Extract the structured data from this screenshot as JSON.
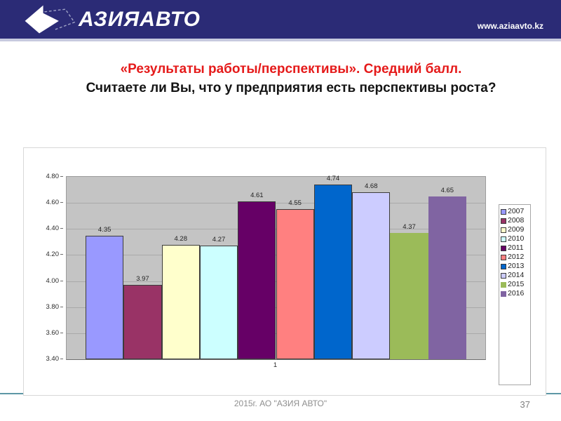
{
  "header": {
    "logo_text": "АЗИЯАВТО",
    "website": "www.aziaavto.kz",
    "bg_color": "#2B2B76"
  },
  "title": {
    "line1": "«Результаты работы/перспективы». Средний балл.",
    "line2": "Считаете ли Вы, что у предприятия есть перспективы роста?",
    "line1_color": "#E51A1A"
  },
  "chart_data": {
    "type": "bar",
    "title": "",
    "categories": [
      "1"
    ],
    "series": [
      {
        "name": "2007",
        "value": 4.35,
        "label": "4.35",
        "color": "#9999FF",
        "border": true
      },
      {
        "name": "2008",
        "value": 3.97,
        "label": "3.97",
        "color": "#993366",
        "border": true
      },
      {
        "name": "2009",
        "value": 4.28,
        "label": "4.28",
        "color": "#FFFFCC",
        "border": true
      },
      {
        "name": "2010",
        "value": 4.27,
        "label": "4.27",
        "color": "#CCFFFF",
        "border": true
      },
      {
        "name": "2011",
        "value": 4.61,
        "label": "4.61",
        "color": "#660066",
        "border": true
      },
      {
        "name": "2012",
        "value": 4.55,
        "label": "4.55",
        "color": "#FF8080",
        "border": true
      },
      {
        "name": "2013",
        "value": 4.74,
        "label": "4.74",
        "color": "#0066CC",
        "border": true
      },
      {
        "name": "2014",
        "value": 4.68,
        "label": "4.68",
        "color": "#CCCCFF",
        "border": true
      },
      {
        "name": "2015",
        "value": 4.37,
        "label": "4.37",
        "color": "#9BBB59",
        "border": false
      },
      {
        "name": "2016",
        "value": 4.65,
        "label": "4.65",
        "color": "#8064A2",
        "border": false
      }
    ],
    "ylim": [
      3.4,
      4.8
    ],
    "yticks": [
      "4.80",
      "4.60",
      "4.40",
      "4.20",
      "4.00",
      "3.80",
      "3.60",
      "3.40"
    ],
    "xlabel": "",
    "ylabel": "",
    "grid": true,
    "plot_bg_color": "#C4C4C4",
    "legend_position": "right",
    "legend_entries": [
      "2007",
      "2008",
      "2009",
      "2010",
      "2011",
      "2012",
      "2013",
      "2014",
      "2015",
      "2016"
    ]
  },
  "footer": {
    "text": "2015г. АО \"АЗИЯ АВТО\"",
    "page_number": "37"
  }
}
